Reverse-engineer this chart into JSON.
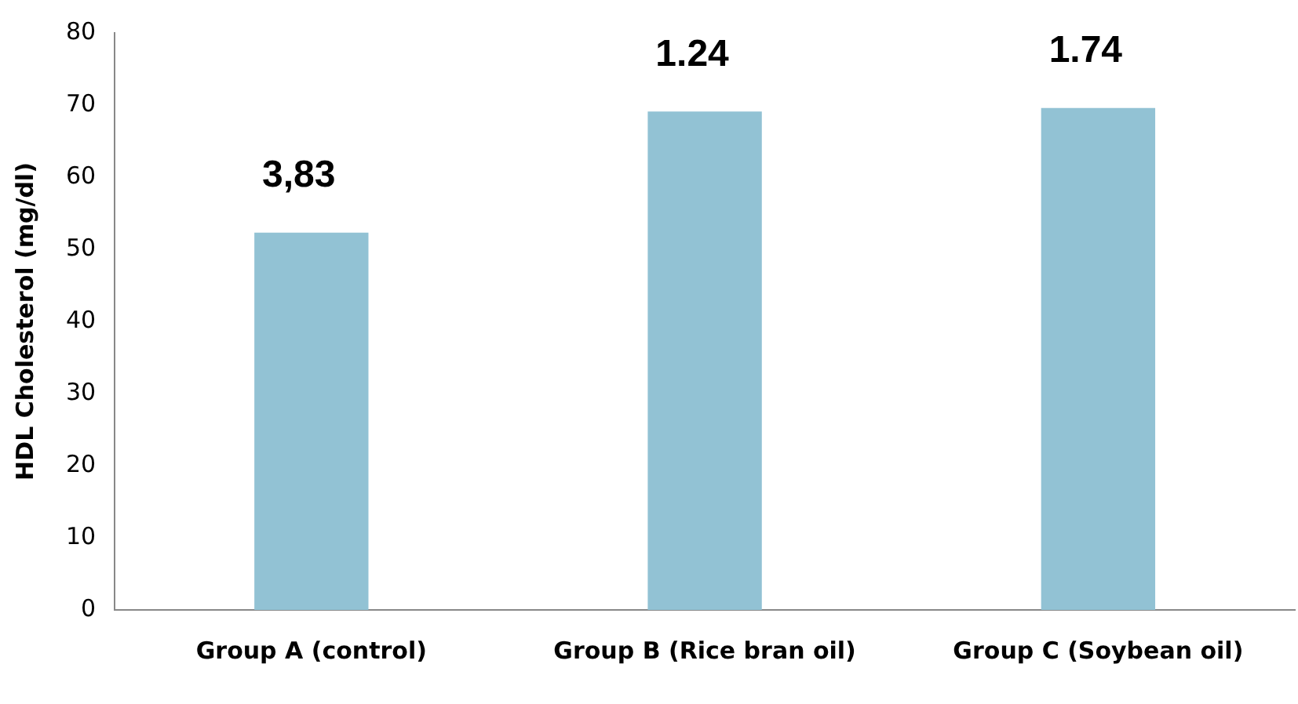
{
  "chart_data": {
    "type": "bar",
    "ylabel": "HDL Cholesterol (mg/dl)",
    "categories": [
      "Group A (control)",
      "Group B (Rice bran oil)",
      "Group C (Soybean oil)"
    ],
    "values": [
      52.3,
      69.1,
      69.6
    ],
    "color": "#92c2d4",
    "ylim": [
      0,
      80
    ],
    "yticks": [
      0,
      10,
      20,
      30,
      40,
      50,
      60,
      70,
      80
    ],
    "grid": false,
    "annotations": [
      "3,83",
      "1.24",
      "1.74"
    ]
  }
}
